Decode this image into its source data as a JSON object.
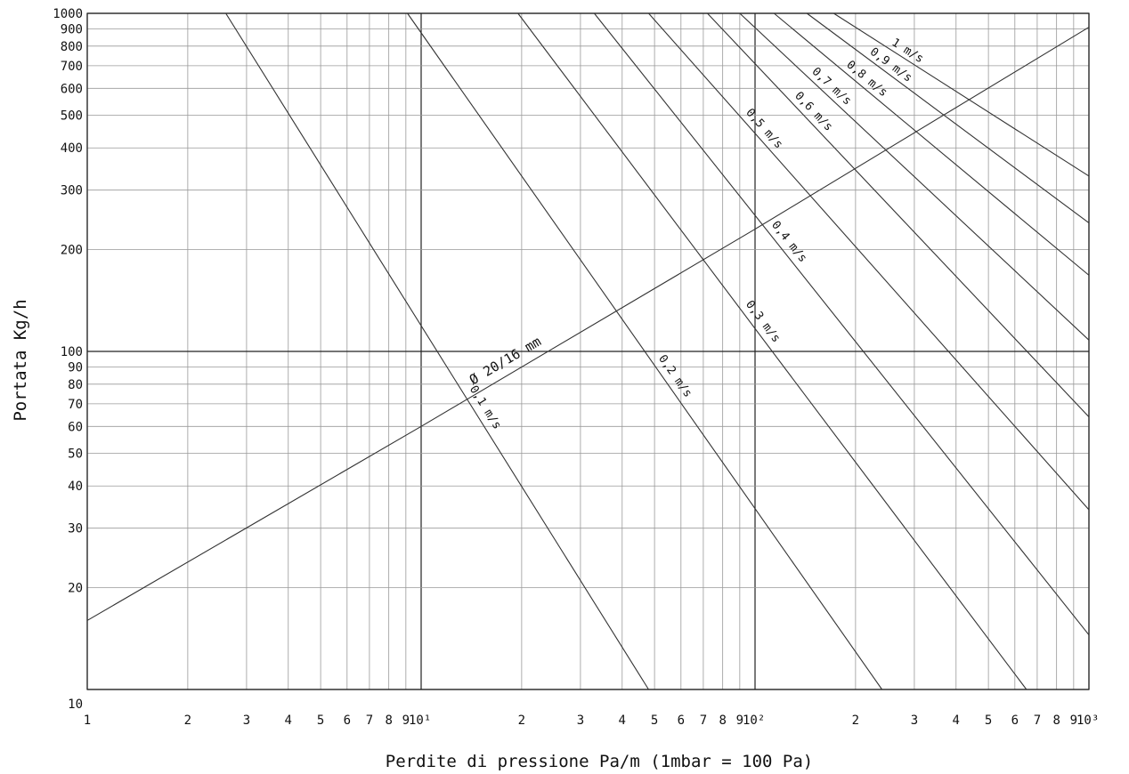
{
  "chart_data": {
    "type": "line",
    "x_scale": "log",
    "y_scale": "log",
    "xlim": [
      1,
      1000
    ],
    "ylim": [
      10,
      1000
    ],
    "grid": true,
    "xlabel": "Perdite di pressione Pa/m (1mbar = 100 Pa)",
    "ylabel": "Portata Kg/h",
    "x_ticks": [
      1,
      2,
      3,
      4,
      5,
      6,
      7,
      8,
      9,
      10,
      20,
      30,
      40,
      50,
      60,
      70,
      80,
      90,
      100,
      200,
      300,
      400,
      500,
      600,
      700,
      800,
      900,
      1000
    ],
    "x_tick_labels": [
      "1",
      "2",
      "3",
      "4",
      "5",
      "6",
      "7",
      "8",
      "9",
      "10¹",
      "2",
      "3",
      "4",
      "5",
      "6",
      "7",
      "8",
      "9",
      "10²",
      "2",
      "3",
      "4",
      "5",
      "6",
      "7",
      "8",
      "9",
      "10³"
    ],
    "y_ticks": [
      10,
      20,
      30,
      40,
      50,
      60,
      70,
      80,
      90,
      100,
      200,
      300,
      400,
      500,
      600,
      700,
      800,
      900,
      1000
    ],
    "y_tick_labels": [
      "10",
      "20",
      "30",
      "40",
      "50",
      "60",
      "70",
      "80",
      "90",
      "100",
      "200",
      "300",
      "400",
      "500",
      "600",
      "700",
      "800",
      "900",
      "1000"
    ],
    "pipe_series": {
      "name": "Ø 20/16 mm",
      "x": [
        1,
        10,
        100,
        1000
      ],
      "y": [
        16,
        60,
        230,
        910
      ]
    },
    "velocity_series": [
      {
        "name": "0,1 m/s",
        "x": [
          2.6,
          48
        ],
        "y": [
          1000,
          10
        ]
      },
      {
        "name": "0,2 m/s",
        "x": [
          9.1,
          240
        ],
        "y": [
          1000,
          10
        ]
      },
      {
        "name": "0,3 m/s",
        "x": [
          19.5,
          650
        ],
        "y": [
          1000,
          10
        ]
      },
      {
        "name": "0,4 m/s",
        "x": [
          33,
          1000
        ],
        "y": [
          1000,
          14.5
        ]
      },
      {
        "name": "0,5 m/s",
        "x": [
          48,
          1000
        ],
        "y": [
          1000,
          34
        ]
      },
      {
        "name": "0,6 m/s",
        "x": [
          72,
          1000
        ],
        "y": [
          1000,
          64
        ]
      },
      {
        "name": "0,7 m/s",
        "x": [
          90,
          1000
        ],
        "y": [
          1000,
          108
        ]
      },
      {
        "name": "0,8 m/s",
        "x": [
          114,
          1000
        ],
        "y": [
          1000,
          168
        ]
      },
      {
        "name": "0,9 m/s",
        "x": [
          143,
          1000
        ],
        "y": [
          1000,
          240
        ]
      },
      {
        "name": "1 m/s",
        "x": [
          172,
          1000
        ],
        "y": [
          1000,
          330
        ]
      }
    ]
  }
}
